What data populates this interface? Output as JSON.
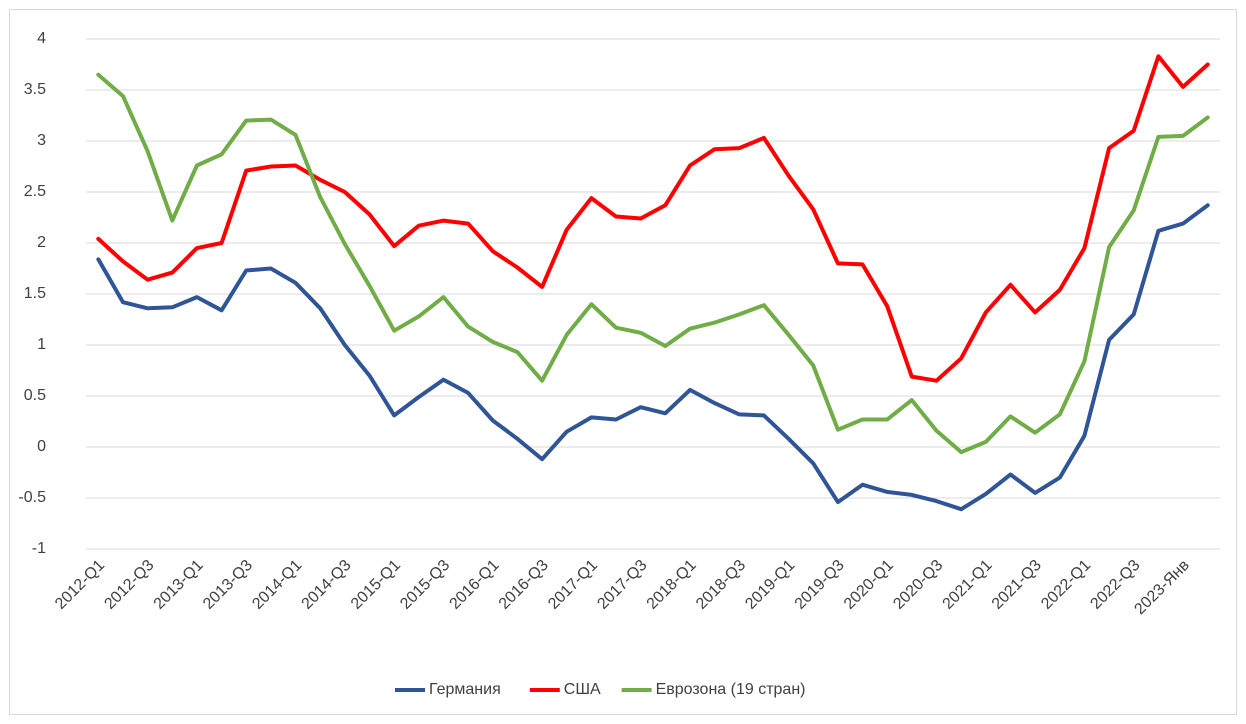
{
  "chart_data": {
    "type": "line",
    "categories": [
      "2012-Q1",
      null,
      "2012-Q3",
      null,
      "2013-Q1",
      null,
      "2013-Q3",
      null,
      "2014-Q1",
      null,
      "2014-Q3",
      null,
      "2015-Q1",
      null,
      "2015-Q3",
      null,
      "2016-Q1",
      null,
      "2016-Q3",
      null,
      "2017-Q1",
      null,
      "2017-Q3",
      null,
      "2018-Q1",
      null,
      "2018-Q3",
      null,
      "2019-Q1",
      null,
      "2019-Q3",
      null,
      "2020-Q1",
      null,
      "2020-Q3",
      null,
      "2021-Q1",
      null,
      "2021-Q3",
      null,
      "2022-Q1",
      null,
      "2022-Q3",
      null,
      "2023-Янв",
      null
    ],
    "series": [
      {
        "name": "Германия",
        "color": "#2f5597",
        "values": [
          1.84,
          1.42,
          1.36,
          1.37,
          1.47,
          1.34,
          1.73,
          1.75,
          1.61,
          1.36,
          1.0,
          0.7,
          0.31,
          0.49,
          0.66,
          0.53,
          0.26,
          0.08,
          -0.12,
          0.15,
          0.29,
          0.27,
          0.39,
          0.33,
          0.56,
          0.43,
          0.32,
          0.31,
          0.08,
          -0.16,
          -0.54,
          -0.37,
          -0.44,
          -0.47,
          -0.53,
          -0.61,
          -0.46,
          -0.27,
          -0.45,
          -0.3,
          0.11,
          1.05,
          1.3,
          2.12,
          2.19,
          2.37
        ]
      },
      {
        "name": "США",
        "color": "#ff0000",
        "values": [
          2.04,
          1.82,
          1.64,
          1.71,
          1.95,
          2.0,
          2.71,
          2.75,
          2.76,
          2.62,
          2.5,
          2.28,
          1.97,
          2.17,
          2.22,
          2.19,
          1.92,
          1.76,
          1.57,
          2.13,
          2.44,
          2.26,
          2.24,
          2.37,
          2.76,
          2.92,
          2.93,
          3.03,
          2.66,
          2.33,
          1.8,
          1.79,
          1.38,
          0.69,
          0.65,
          0.87,
          1.32,
          1.59,
          1.32,
          1.54,
          1.95,
          2.93,
          3.1,
          3.83,
          3.53,
          3.75
        ]
      },
      {
        "name": "Еврозона (19 стран)",
        "color": "#70ad47",
        "values": [
          3.65,
          3.44,
          2.9,
          2.22,
          2.76,
          2.87,
          3.2,
          3.21,
          3.06,
          2.45,
          1.99,
          1.58,
          1.14,
          1.28,
          1.47,
          1.18,
          1.03,
          0.93,
          0.65,
          1.1,
          1.4,
          1.17,
          1.12,
          0.99,
          1.16,
          1.22,
          1.3,
          1.39,
          1.1,
          0.8,
          0.17,
          0.27,
          0.27,
          0.46,
          0.16,
          -0.05,
          0.05,
          0.3,
          0.14,
          0.32,
          0.84,
          1.96,
          2.32,
          3.04,
          3.05,
          3.23
        ]
      }
    ],
    "ylim": [
      -1,
      4
    ],
    "yticks": [
      -1,
      -0.5,
      0,
      0.5,
      1,
      1.5,
      2,
      2.5,
      3,
      3.5,
      4
    ],
    "grid": true,
    "legend": "bottom"
  }
}
